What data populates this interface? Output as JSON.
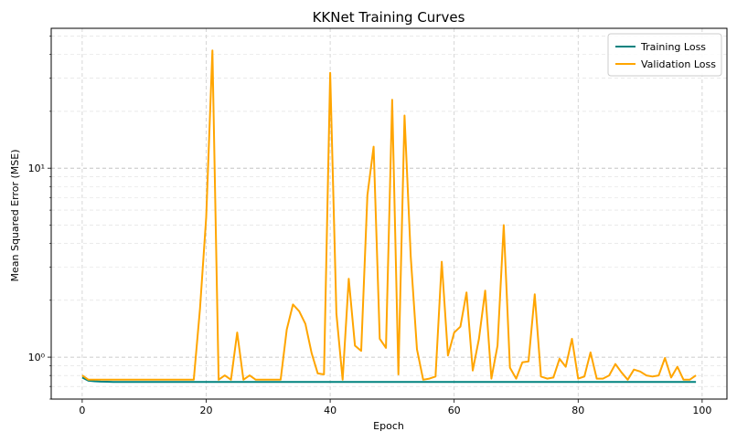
{
  "chart_data": {
    "type": "line",
    "title": "KKNet Training Curves",
    "xlabel": "Epoch",
    "ylabel": "Mean Squared Error (MSE)",
    "xlim": [
      -5,
      104
    ],
    "ylim": [
      0.6,
      55
    ],
    "yscale": "log",
    "x_ticks": [
      0,
      20,
      40,
      60,
      80,
      100
    ],
    "y_ticks": [
      1,
      10
    ],
    "y_tick_labels": [
      "10⁰",
      "10¹"
    ],
    "grid": true,
    "legend_position": "top-right",
    "x": [
      0,
      1,
      2,
      3,
      4,
      5,
      6,
      7,
      8,
      9,
      10,
      11,
      12,
      13,
      14,
      15,
      16,
      17,
      18,
      19,
      20,
      21,
      22,
      23,
      24,
      25,
      26,
      27,
      28,
      29,
      30,
      31,
      32,
      33,
      34,
      35,
      36,
      37,
      38,
      39,
      40,
      41,
      42,
      43,
      44,
      45,
      46,
      47,
      48,
      49,
      50,
      51,
      52,
      53,
      54,
      55,
      56,
      57,
      58,
      59,
      60,
      61,
      62,
      63,
      64,
      65,
      66,
      67,
      68,
      69,
      70,
      71,
      72,
      73,
      74,
      75,
      76,
      77,
      78,
      79,
      80,
      81,
      82,
      83,
      84,
      85,
      86,
      87,
      88,
      89,
      90,
      91,
      92,
      93,
      94,
      95,
      96,
      97,
      98,
      99
    ],
    "series": [
      {
        "name": "Training Loss",
        "color": "#00827f",
        "values": [
          0.78,
          0.75,
          0.745,
          0.742,
          0.741,
          0.74,
          0.74,
          0.74,
          0.74,
          0.74,
          0.74,
          0.74,
          0.74,
          0.74,
          0.74,
          0.74,
          0.74,
          0.74,
          0.74,
          0.74,
          0.74,
          0.74,
          0.74,
          0.74,
          0.74,
          0.74,
          0.74,
          0.74,
          0.74,
          0.74,
          0.74,
          0.74,
          0.74,
          0.74,
          0.74,
          0.74,
          0.74,
          0.74,
          0.74,
          0.74,
          0.74,
          0.74,
          0.74,
          0.74,
          0.74,
          0.74,
          0.74,
          0.74,
          0.74,
          0.74,
          0.74,
          0.74,
          0.74,
          0.74,
          0.74,
          0.74,
          0.74,
          0.74,
          0.74,
          0.74,
          0.74,
          0.74,
          0.74,
          0.74,
          0.74,
          0.74,
          0.74,
          0.74,
          0.74,
          0.74,
          0.74,
          0.74,
          0.74,
          0.74,
          0.74,
          0.74,
          0.74,
          0.74,
          0.74,
          0.74,
          0.74,
          0.74,
          0.74,
          0.74,
          0.74,
          0.74,
          0.74,
          0.74,
          0.74,
          0.74,
          0.74,
          0.74,
          0.74,
          0.74,
          0.74,
          0.74,
          0.74,
          0.74,
          0.74,
          0.74
        ]
      },
      {
        "name": "Validation Loss",
        "color": "#ffa500",
        "values": [
          0.8,
          0.76,
          0.76,
          0.76,
          0.76,
          0.76,
          0.76,
          0.76,
          0.76,
          0.76,
          0.76,
          0.76,
          0.76,
          0.76,
          0.76,
          0.76,
          0.76,
          0.76,
          0.76,
          1.8,
          5.5,
          42,
          0.76,
          0.8,
          0.76,
          1.35,
          0.76,
          0.8,
          0.76,
          0.76,
          0.76,
          0.76,
          0.76,
          1.4,
          1.9,
          1.75,
          1.5,
          1.05,
          0.82,
          0.81,
          32,
          1.7,
          0.76,
          2.6,
          1.15,
          1.08,
          7.2,
          13,
          1.25,
          1.12,
          23,
          0.81,
          19,
          3.4,
          1.1,
          0.76,
          0.77,
          0.79,
          3.2,
          1.02,
          1.35,
          1.45,
          2.2,
          0.85,
          1.25,
          2.25,
          0.77,
          1.15,
          5,
          0.88,
          0.77,
          0.94,
          0.95,
          2.15,
          0.79,
          0.77,
          0.78,
          0.98,
          0.89,
          1.25,
          0.77,
          0.79,
          1.06,
          0.77,
          0.77,
          0.8,
          0.92,
          0.83,
          0.76,
          0.86,
          0.84,
          0.8,
          0.79,
          0.8,
          0.99,
          0.78,
          0.89,
          0.76,
          0.76,
          0.8
        ]
      }
    ]
  }
}
